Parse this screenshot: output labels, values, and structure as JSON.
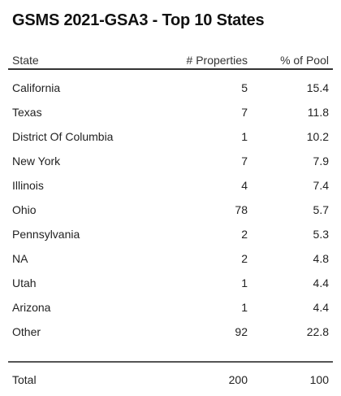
{
  "title": "GSMS 2021-GSA3 - Top 10 States",
  "table": {
    "headers": {
      "state": "State",
      "properties": "# Properties",
      "pool": "% of Pool"
    },
    "rows": [
      {
        "state": "California",
        "properties": "5",
        "pool": "15.4"
      },
      {
        "state": "Texas",
        "properties": "7",
        "pool": "11.8"
      },
      {
        "state": "District Of Columbia",
        "properties": "1",
        "pool": "10.2"
      },
      {
        "state": "New York",
        "properties": "7",
        "pool": "7.9"
      },
      {
        "state": "Illinois",
        "properties": "4",
        "pool": "7.4"
      },
      {
        "state": "Ohio",
        "properties": "78",
        "pool": "5.7"
      },
      {
        "state": "Pennsylvania",
        "properties": "2",
        "pool": "5.3"
      },
      {
        "state": "NA",
        "properties": "2",
        "pool": "4.8"
      },
      {
        "state": "Utah",
        "properties": "1",
        "pool": "4.4"
      },
      {
        "state": "Arizona",
        "properties": "1",
        "pool": "4.4"
      },
      {
        "state": "Other",
        "properties": "92",
        "pool": "22.8"
      }
    ],
    "total": {
      "state": "Total",
      "properties": "200",
      "pool": "100"
    }
  }
}
